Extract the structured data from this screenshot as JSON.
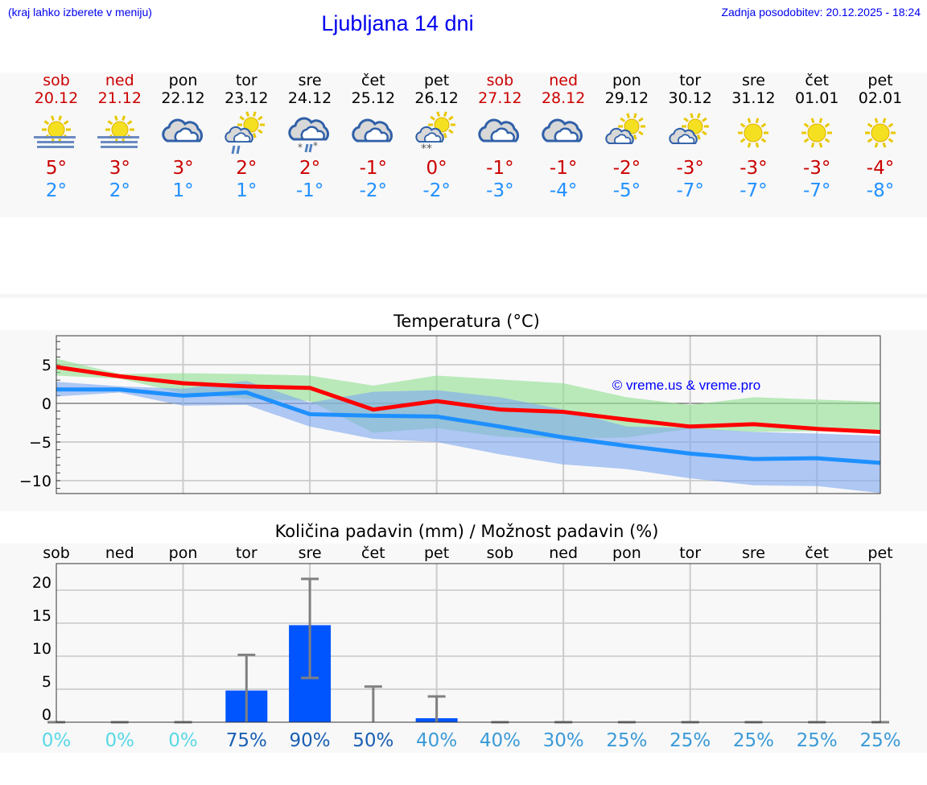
{
  "header": {
    "hint": "(kraj lahko izberete v meniju)",
    "title": "Ljubljana 14 dni",
    "updated": "Zadnja posodobitev: 20.12.2025 - 18:24"
  },
  "days": [
    {
      "name": "sob",
      "date": "20.12",
      "weekend": true,
      "icon": "sun-fog",
      "max": "5°",
      "min": "2°"
    },
    {
      "name": "ned",
      "date": "21.12",
      "weekend": true,
      "icon": "sun-fog",
      "max": "3°",
      "min": "2°"
    },
    {
      "name": "pon",
      "date": "22.12",
      "weekend": false,
      "icon": "cloudy",
      "max": "3°",
      "min": "1°"
    },
    {
      "name": "tor",
      "date": "23.12",
      "weekend": false,
      "icon": "partly-cloudy-rain",
      "max": "2°",
      "min": "1°"
    },
    {
      "name": "sre",
      "date": "24.12",
      "weekend": false,
      "icon": "cloudy-sleet",
      "max": "2°",
      "min": "-1°"
    },
    {
      "name": "čet",
      "date": "25.12",
      "weekend": false,
      "icon": "cloudy",
      "max": "-1°",
      "min": "-2°"
    },
    {
      "name": "pet",
      "date": "26.12",
      "weekend": false,
      "icon": "partly-cloudy-snow",
      "max": "0°",
      "min": "-2°"
    },
    {
      "name": "sob",
      "date": "27.12",
      "weekend": true,
      "icon": "cloudy",
      "max": "-1°",
      "min": "-3°"
    },
    {
      "name": "ned",
      "date": "28.12",
      "weekend": true,
      "icon": "cloudy",
      "max": "-1°",
      "min": "-4°"
    },
    {
      "name": "pon",
      "date": "29.12",
      "weekend": false,
      "icon": "partly-cloudy",
      "max": "-2°",
      "min": "-5°"
    },
    {
      "name": "tor",
      "date": "30.12",
      "weekend": false,
      "icon": "partly-cloudy",
      "max": "-3°",
      "min": "-7°"
    },
    {
      "name": "sre",
      "date": "31.12",
      "weekend": false,
      "icon": "sunny",
      "max": "-3°",
      "min": "-7°"
    },
    {
      "name": "čet",
      "date": "01.01",
      "weekend": false,
      "icon": "sunny",
      "max": "-3°",
      "min": "-7°"
    },
    {
      "name": "pet",
      "date": "02.01",
      "weekend": false,
      "icon": "sunny",
      "max": "-4°",
      "min": "-8°"
    }
  ],
  "chart_data": [
    {
      "type": "line",
      "title": "Temperatura (°C)",
      "watermark": "© vreme.us & vreme.pro",
      "ylim": [
        -11.7,
        8.7
      ],
      "yticks": [
        5,
        0,
        -5,
        -10
      ],
      "ytick_labels": [
        "5",
        "0",
        "−5",
        "−10"
      ],
      "grid": true,
      "series": [
        {
          "color": "#ff0000",
          "values": [
            4.7,
            3.5,
            2.6,
            2.2,
            2.0,
            -0.8,
            0.3,
            -0.8,
            -1.1,
            -2.1,
            -3.0,
            -2.7,
            -3.3,
            -3.7
          ],
          "band_upper": [
            5.8,
            3.8,
            3.9,
            3.8,
            3.6,
            2.3,
            3.6,
            3.1,
            2.6,
            0.8,
            -0.2,
            0.8,
            0.5,
            0.2
          ],
          "band_lower": [
            3.6,
            3.2,
            1.3,
            0.6,
            0.3,
            -3.8,
            -3.2,
            -4.3,
            -4.6,
            -4.4,
            -3.3,
            -3.7,
            -3.6,
            -3.4
          ],
          "band_color": "#90e090"
        },
        {
          "color": "#1e90ff",
          "values": [
            1.8,
            1.8,
            1.0,
            1.4,
            -1.4,
            -1.6,
            -1.7,
            -3.0,
            -4.4,
            -5.5,
            -6.5,
            -7.2,
            -7.1,
            -7.7
          ],
          "band_upper": [
            2.8,
            2.2,
            1.9,
            2.9,
            0.1,
            1.5,
            1.7,
            0.8,
            -0.8,
            -3.0,
            -3.2,
            -3.7,
            -3.9,
            -4.2
          ],
          "band_lower": [
            0.9,
            1.4,
            -0.3,
            -0.2,
            -3.0,
            -4.6,
            -5.0,
            -6.6,
            -7.9,
            -8.5,
            -9.7,
            -10.6,
            -10.7,
            -11.6
          ],
          "band_color": "#7da7f0"
        }
      ]
    },
    {
      "type": "bar",
      "title": "Količina padavin (mm) / Možnost padavin (%)",
      "categories": [
        "sob",
        "ned",
        "pon",
        "tor",
        "sre",
        "čet",
        "pet",
        "sob",
        "ned",
        "pon",
        "tor",
        "sre",
        "čet",
        "pet"
      ],
      "ylim": [
        0,
        24
      ],
      "yticks": [
        0,
        5,
        10,
        15,
        20
      ],
      "bar_color": "#0055ff",
      "errorbar_color": "#808080",
      "values": [
        0,
        0,
        0,
        4.8,
        14.7,
        0,
        0.6,
        0,
        0,
        0,
        0,
        0,
        0,
        0
      ],
      "err_low": [
        0,
        0,
        0,
        0,
        6.7,
        0,
        0,
        0,
        0,
        0,
        0,
        0,
        0,
        0
      ],
      "err_high": [
        0,
        0,
        0,
        10.2,
        21.7,
        5.4,
        3.9,
        0,
        0,
        0,
        0,
        0,
        0,
        0
      ],
      "probabilities": [
        "0%",
        "0%",
        "0%",
        "75%",
        "90%",
        "50%",
        "40%",
        "40%",
        "30%",
        "25%",
        "25%",
        "25%",
        "25%",
        "25%"
      ],
      "probability_colors": [
        "#5ad8e6",
        "#5ad8e6",
        "#5ad8e6",
        "#1a5fb4",
        "#1a5fb4",
        "#1a5fb4",
        "#3a9ad8",
        "#3a9ad8",
        "#3a9ad8",
        "#3a9ad8",
        "#3a9ad8",
        "#3a9ad8",
        "#3a9ad8",
        "#3a9ad8"
      ]
    }
  ]
}
